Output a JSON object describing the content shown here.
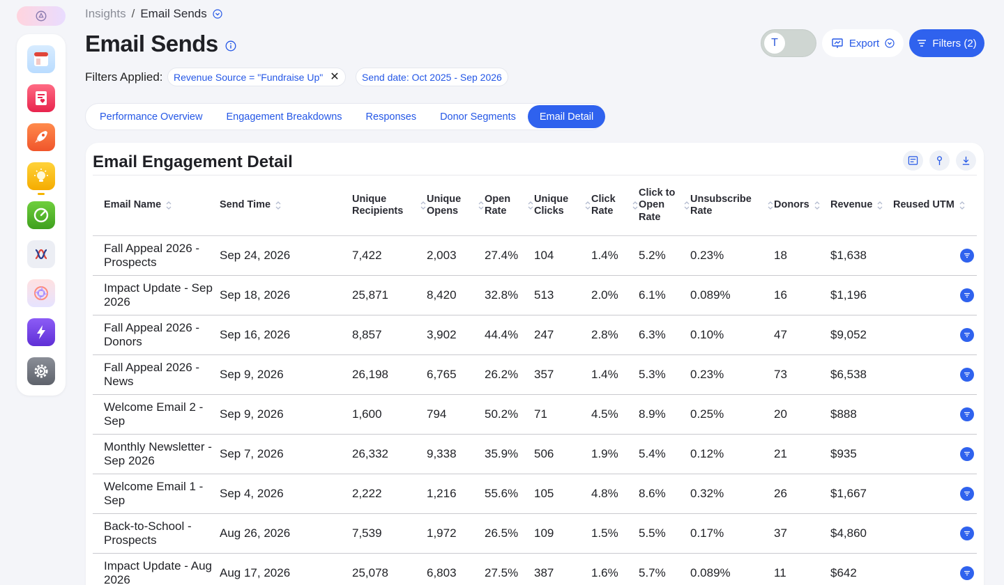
{
  "breadcrumb": {
    "root": "Insights",
    "separator": "/",
    "current": "Email Sends"
  },
  "page": {
    "title": "Email Sends"
  },
  "header_actions": {
    "toggle_letter": "T",
    "export_label": "Export",
    "filters_label": "Filters (2)"
  },
  "filters": {
    "label": "Filters Applied:",
    "chips": [
      {
        "label": "Revenue Source = \"Fundraise Up\"",
        "removable": true
      },
      {
        "label": "Send date: Oct 2025 - Sep 2026",
        "removable": false
      }
    ]
  },
  "tabs": [
    {
      "label": "Performance Overview",
      "active": false
    },
    {
      "label": "Engagement Breakdowns",
      "active": false
    },
    {
      "label": "Responses",
      "active": false
    },
    {
      "label": "Donor Segments",
      "active": false
    },
    {
      "label": "Email Detail",
      "active": true
    }
  ],
  "card": {
    "title": "Email Engagement Detail"
  },
  "table": {
    "columns": [
      "Email Name",
      "Send Time",
      "Unique Recipients",
      "Unique Opens",
      "Open Rate",
      "Unique Clicks",
      "Click Rate",
      "Click to Open Rate",
      "Unsubscribe Rate",
      "Donors",
      "Revenue",
      "Reused UTM"
    ],
    "rows": [
      [
        "Fall Appeal 2026 - Prospects",
        "Sep 24, 2026",
        "7,422",
        "2,003",
        "27.4%",
        "104",
        "1.4%",
        "5.2%",
        "0.23%",
        "18",
        "$1,638",
        ""
      ],
      [
        "Impact Update - Sep 2026",
        "Sep 18, 2026",
        "25,871",
        "8,420",
        "32.8%",
        "513",
        "2.0%",
        "6.1%",
        "0.089%",
        "16",
        "$1,196",
        ""
      ],
      [
        "Fall Appeal 2026 - Donors",
        "Sep 16, 2026",
        "8,857",
        "3,902",
        "44.4%",
        "247",
        "2.8%",
        "6.3%",
        "0.10%",
        "47",
        "$9,052",
        ""
      ],
      [
        "Fall Appeal 2026 - News",
        "Sep 9, 2026",
        "26,198",
        "6,765",
        "26.2%",
        "357",
        "1.4%",
        "5.3%",
        "0.23%",
        "73",
        "$6,538",
        ""
      ],
      [
        "Welcome Email 2 - Sep",
        "Sep 9, 2026",
        "1,600",
        "794",
        "50.2%",
        "71",
        "4.5%",
        "8.9%",
        "0.25%",
        "20",
        "$888",
        ""
      ],
      [
        "Monthly Newsletter - Sep 2026",
        "Sep 7, 2026",
        "26,332",
        "9,338",
        "35.9%",
        "506",
        "1.9%",
        "5.4%",
        "0.12%",
        "21",
        "$935",
        ""
      ],
      [
        "Welcome Email 1 - Sep",
        "Sep 4, 2026",
        "2,222",
        "1,216",
        "55.6%",
        "105",
        "4.8%",
        "8.6%",
        "0.32%",
        "26",
        "$1,667",
        ""
      ],
      [
        "Back-to-School - Prospects",
        "Aug 26, 2026",
        "7,539",
        "1,972",
        "26.5%",
        "109",
        "1.5%",
        "5.5%",
        "0.17%",
        "37",
        "$4,860",
        ""
      ],
      [
        "Impact Update - Aug 2026",
        "Aug 17, 2026",
        "25,078",
        "6,803",
        "27.5%",
        "387",
        "1.6%",
        "5.7%",
        "0.089%",
        "11",
        "$642",
        ""
      ]
    ]
  },
  "colors": {
    "accent": "#2f62ee",
    "link": "#2457e6",
    "background": "#f4f5f9"
  },
  "sidebar_apps": [
    "dashboard-app-icon",
    "donor-card-app-icon",
    "rocket-app-icon",
    "lightbulb-app-icon",
    "gauge-app-icon",
    "journey-app-icon",
    "aperture-app-icon",
    "lightning-app-icon",
    "settings-app-icon"
  ]
}
